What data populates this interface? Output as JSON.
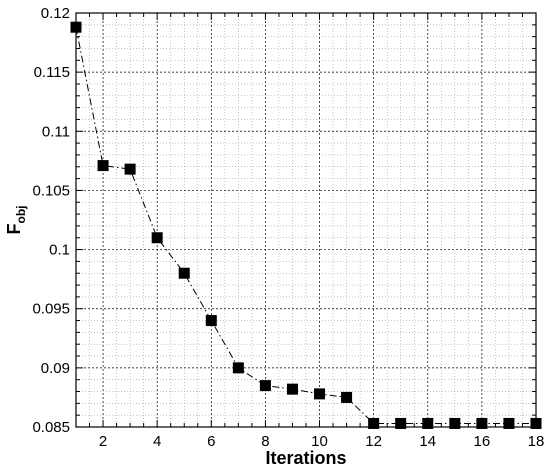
{
  "chart_data": {
    "type": "line",
    "title": "",
    "xlabel": "Iterations",
    "ylabel": "F",
    "ylabel_subscript": "obj",
    "xlim": [
      1,
      18
    ],
    "ylim": [
      0.085,
      0.12
    ],
    "x_ticks": [
      2,
      4,
      6,
      8,
      10,
      12,
      14,
      16,
      18
    ],
    "y_ticks": [
      0.085,
      0.09,
      0.095,
      0.1,
      0.105,
      0.11,
      0.115,
      0.12
    ],
    "x_tick_labels": [
      "2",
      "4",
      "6",
      "8",
      "10",
      "12",
      "14",
      "16",
      "18"
    ],
    "y_tick_labels": [
      "0.085",
      "0.09",
      "0.095",
      "0.1",
      "0.105",
      "0.11",
      "0.115",
      "0.12"
    ],
    "x_minor_step": 0.5,
    "y_minor_step": 0.001,
    "grid": true,
    "series": [
      {
        "x": [
          1,
          2,
          3,
          4,
          5,
          6,
          7,
          8,
          9,
          10,
          11,
          12,
          13,
          14,
          15,
          16,
          17,
          18
        ],
        "values": [
          0.1188,
          0.1071,
          0.1068,
          0.101,
          0.098,
          0.094,
          0.09,
          0.0885,
          0.0882,
          0.0878,
          0.0875,
          0.0853,
          0.0853,
          0.0853,
          0.0853,
          0.0853,
          0.0853,
          0.0853
        ],
        "marker": "square",
        "line_style": "dash-dot",
        "color": "#000000"
      }
    ]
  }
}
